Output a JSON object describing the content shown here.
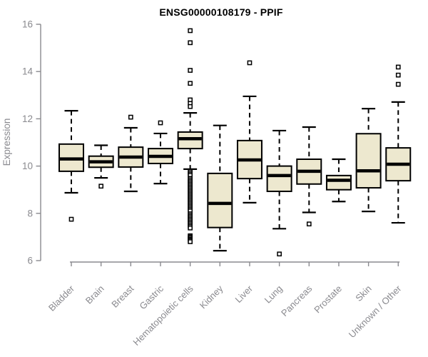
{
  "chart_data": {
    "type": "box",
    "title": "ENSG00000108179 - PPIF",
    "ylabel": "Expression",
    "xlabel": "",
    "ylim": [
      6,
      16
    ],
    "yticks": [
      6,
      8,
      10,
      12,
      14,
      16
    ],
    "grid": false,
    "legend": "none",
    "colors": {
      "box_fill": "#ede8cf",
      "box_stroke": "#000000",
      "axis": "#8a8a8f",
      "label": "#8a8a8f",
      "title": "#000000",
      "outlier_fill": "#ffffff"
    },
    "categories": [
      "Bladder",
      "Brain",
      "Breast",
      "Gastric",
      "Hematopoietic cells",
      "Kidney",
      "Liver",
      "Lung",
      "Pancreas",
      "Prostate",
      "Skin",
      "Unknown / Other"
    ],
    "series": [
      {
        "name": "Bladder",
        "low": 8.87,
        "q1": 9.78,
        "median": 10.3,
        "q3": 10.93,
        "high": 12.34,
        "outliers": [
          7.75
        ]
      },
      {
        "name": "Brain",
        "low": 9.5,
        "q1": 9.95,
        "median": 10.18,
        "q3": 10.42,
        "high": 10.88,
        "outliers": [
          9.15
        ]
      },
      {
        "name": "Breast",
        "low": 8.93,
        "q1": 9.96,
        "median": 10.38,
        "q3": 10.8,
        "high": 11.62,
        "outliers": [
          12.07
        ]
      },
      {
        "name": "Gastric",
        "low": 9.26,
        "q1": 10.11,
        "median": 10.41,
        "q3": 10.74,
        "high": 11.38,
        "outliers": [
          11.83
        ]
      },
      {
        "name": "Hematopoietic cells",
        "low": 9.87,
        "q1": 10.74,
        "median": 11.16,
        "q3": 11.44,
        "high": 12.25,
        "outliers": [
          15.73,
          15.22,
          14.05,
          13.5,
          12.8,
          12.65,
          12.52,
          9.78,
          9.72,
          9.66,
          9.6,
          9.48,
          9.42,
          9.36,
          9.3,
          9.24,
          9.18,
          9.12,
          9.06,
          9.0,
          8.94,
          8.88,
          8.82,
          8.76,
          8.7,
          8.64,
          8.58,
          8.52,
          8.46,
          8.4,
          8.34,
          8.28,
          8.22,
          8.16,
          8.1,
          7.98,
          7.92,
          7.86,
          7.8,
          7.74,
          7.68,
          7.62,
          7.56,
          7.5,
          7.44,
          7.38,
          7.05,
          7.0,
          6.95,
          6.9,
          6.85,
          6.8
        ]
      },
      {
        "name": "Kidney",
        "low": 6.42,
        "q1": 7.4,
        "median": 8.42,
        "q3": 9.69,
        "high": 11.72,
        "outliers": []
      },
      {
        "name": "Liver",
        "low": 8.45,
        "q1": 9.47,
        "median": 10.26,
        "q3": 11.08,
        "high": 12.95,
        "outliers": [
          14.37
        ]
      },
      {
        "name": "Lung",
        "low": 7.35,
        "q1": 8.93,
        "median": 9.6,
        "q3": 10.0,
        "high": 11.5,
        "outliers": [
          6.28
        ]
      },
      {
        "name": "Pancreas",
        "low": 8.04,
        "q1": 9.24,
        "median": 9.78,
        "q3": 10.29,
        "high": 11.65,
        "outliers": [
          7.55
        ]
      },
      {
        "name": "Prostate",
        "low": 8.5,
        "q1": 9.0,
        "median": 9.4,
        "q3": 9.6,
        "high": 10.29,
        "outliers": []
      },
      {
        "name": "Skin",
        "low": 8.08,
        "q1": 9.08,
        "median": 9.8,
        "q3": 11.37,
        "high": 12.43,
        "outliers": []
      },
      {
        "name": "Unknown / Other",
        "low": 7.6,
        "q1": 9.38,
        "median": 10.08,
        "q3": 10.77,
        "high": 12.71,
        "outliers": [
          14.19,
          13.85,
          13.46
        ]
      }
    ]
  }
}
